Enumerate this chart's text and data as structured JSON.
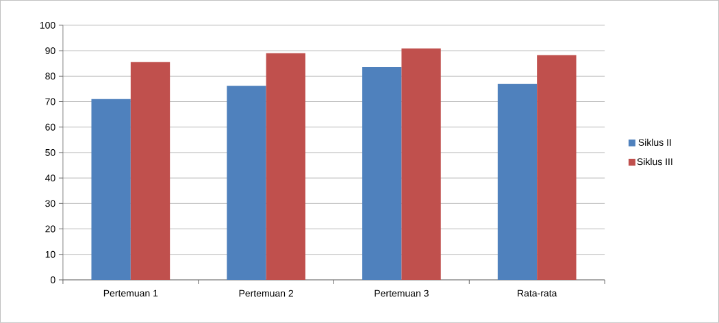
{
  "chart_data": {
    "type": "bar",
    "categories": [
      "Pertemuan 1",
      "Pertemuan 2",
      "Pertemuan 3",
      "Rata-rata"
    ],
    "series": [
      {
        "name": "Siklus II",
        "color": "#4f81bd",
        "values": [
          71,
          76.2,
          83.6,
          76.9
        ]
      },
      {
        "name": "Siklus III",
        "color": "#c0504d",
        "values": [
          85.5,
          89,
          90.9,
          88.3
        ]
      }
    ],
    "ylim": [
      0,
      100
    ],
    "yticks": [
      0,
      10,
      20,
      30,
      40,
      50,
      60,
      70,
      80,
      90,
      100
    ],
    "grid": "y",
    "legend": "right"
  }
}
